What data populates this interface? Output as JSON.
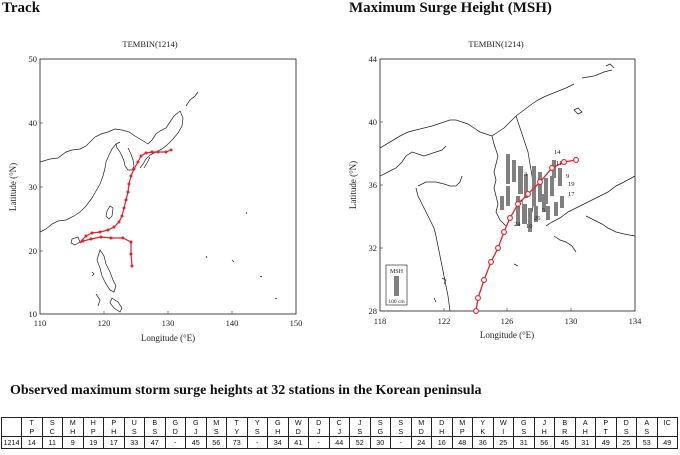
{
  "page": {
    "track_title": "Track",
    "msh_title": "Maximum Surge Height (MSH)",
    "caption": "Observed maximum storm surge heights at 32 stations in the Korean peninsula"
  },
  "track_map": {
    "title": "TEMBIN(1214)",
    "xlabel": "Longitude (°E)",
    "ylabel": "Latitude (°N)",
    "x_ticks": [
      "110",
      "120",
      "130",
      "140",
      "150"
    ],
    "y_ticks": [
      "10",
      "20",
      "30",
      "40",
      "50"
    ],
    "track_color": "#e8202a"
  },
  "msh_map": {
    "title": "TEMBIN(1214)",
    "xlabel": "Longitude (°E)",
    "ylabel": "Latitude (°N)",
    "x_ticks": [
      "118",
      "122",
      "126",
      "130",
      "134"
    ],
    "y_ticks": [
      "28",
      "32",
      "36",
      "40",
      "44"
    ],
    "legend_title": "MSH",
    "legend_scale": "100 cm",
    "station_labels": [
      "14",
      "11",
      "3",
      "9",
      "19",
      "17",
      "24",
      "10",
      "5",
      "26",
      "3"
    ],
    "track_color": "#e8202a",
    "bar_color": "#808080"
  },
  "station_table": {
    "header_top": [
      "T",
      "S",
      "M",
      "H",
      "P",
      "U",
      "B",
      "G",
      "G",
      "M",
      "T",
      "Y",
      "G",
      "W",
      "D",
      "C",
      "J",
      "S",
      "S",
      "M",
      "D",
      "M",
      "Y",
      "W",
      "G",
      "J",
      "B",
      "A",
      "P",
      "D",
      "A",
      "IC"
    ],
    "header_bottom": [
      "P",
      "C",
      "H",
      "P",
      "H",
      "S",
      "S",
      "D",
      "J",
      "S",
      "Y",
      "S",
      "H",
      "D",
      "J",
      "J",
      "S",
      "G",
      "S",
      "D",
      "H",
      "P",
      "K",
      "I",
      "S",
      "H",
      "R",
      "H",
      "T",
      "S",
      "S",
      ""
    ],
    "first_cell": "1214",
    "values": [
      "14",
      "11",
      "9",
      "19",
      "17",
      "33",
      "47",
      "-",
      "45",
      "56",
      "73",
      "-",
      "34",
      "41",
      "-",
      "44",
      "52",
      "30",
      "-",
      "24",
      "16",
      "48",
      "36",
      "25",
      "31",
      "56",
      "45",
      "31",
      "49",
      "25",
      "53",
      "49"
    ]
  }
}
